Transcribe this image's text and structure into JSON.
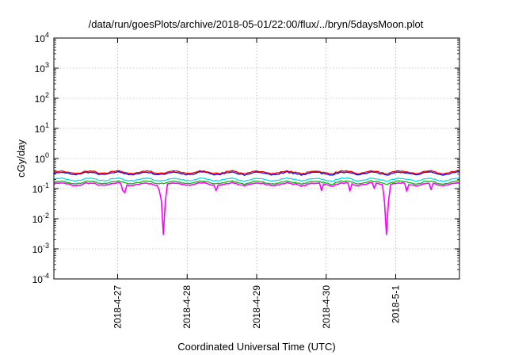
{
  "chart_data": {
    "type": "line",
    "title": "/data/run/goesPlots/archive/2018-05-01/22:00/flux/../bryn/5daysMoon.plot",
    "xlabel": "Coordinated Universal Time (UTC)",
    "ylabel": "cGy/day",
    "y_scale": "log",
    "ylim": [
      0.0001,
      10000
    ],
    "y_ticks": [
      {
        "base": "10",
        "exp": "-4",
        "value": 0.0001
      },
      {
        "base": "10",
        "exp": "-3",
        "value": 0.001
      },
      {
        "base": "10",
        "exp": "-2",
        "value": 0.01
      },
      {
        "base": "10",
        "exp": "-1",
        "value": 0.1
      },
      {
        "base": "10",
        "exp": "0",
        "value": 1
      },
      {
        "base": "10",
        "exp": "1",
        "value": 10
      },
      {
        "base": "10",
        "exp": "2",
        "value": 100
      },
      {
        "base": "10",
        "exp": "3",
        "value": 1000
      },
      {
        "base": "10",
        "exp": "4",
        "value": 10000
      }
    ],
    "xlim": [
      "2018-04-26T02:00",
      "2018-05-01T22:00"
    ],
    "x_ticks": [
      {
        "label": "2018-4-27",
        "value": "2018-04-27T00:00"
      },
      {
        "label": "2018-4-28",
        "value": "2018-04-28T00:00"
      },
      {
        "label": "2018-4-29",
        "value": "2018-04-29T00:00"
      },
      {
        "label": "2018-4-30",
        "value": "2018-04-30T00:00"
      },
      {
        "label": "2018-5-1",
        "value": "2018-05-01T00:00"
      }
    ],
    "grid": true,
    "series": [
      {
        "color": "#ff00ff",
        "level": 0.14,
        "dips": [
          {
            "at": "2018-04-27T16:00",
            "min": 0.003
          },
          {
            "at": "2018-04-30T21:00",
            "min": 0.003
          }
        ]
      },
      {
        "color": "#00c000",
        "level": 0.16
      },
      {
        "color": "#00e0e0",
        "level": 0.2
      },
      {
        "color": "#0000ff",
        "level": 0.32
      },
      {
        "color": "#ff0000",
        "level": 0.35
      }
    ]
  }
}
